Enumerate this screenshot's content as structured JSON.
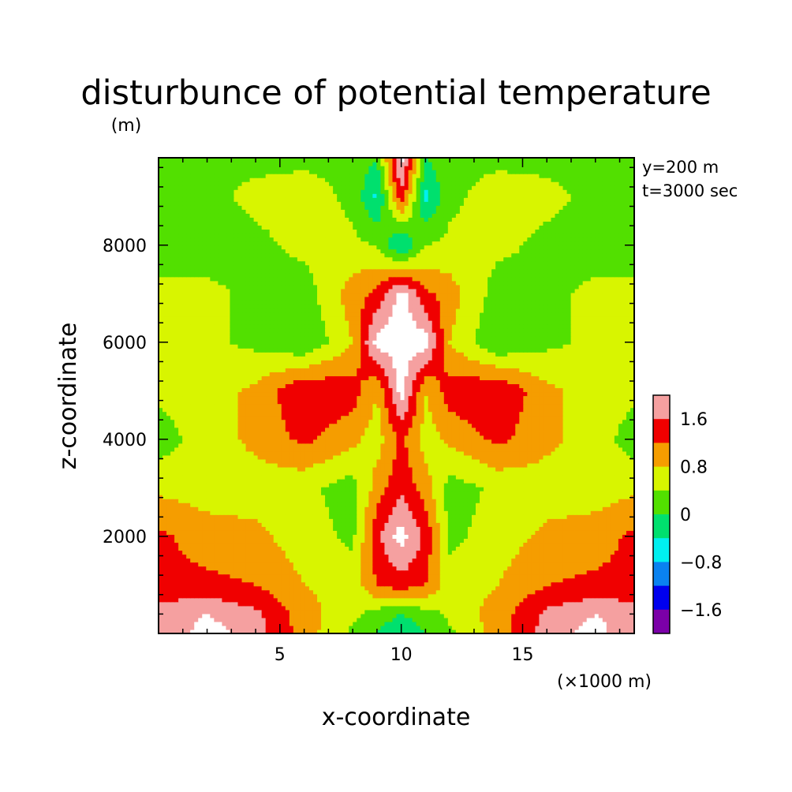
{
  "title": "disturbunce of potential temperature",
  "z_unit": "(m)",
  "info": [
    "y=200 m",
    "t=3000 sec"
  ],
  "x_unit": "(×1000 m)",
  "colorbar": {
    "labels": [
      "1.6",
      "0.8",
      "0",
      "−0.8",
      "−1.6"
    ]
  },
  "chart_data": {
    "type": "heatmap",
    "title": "disturbunce of potential temperature",
    "xlabel": "x-coordinate",
    "ylabel": "z-coordinate",
    "x_unit": "(×1000 m)",
    "y_unit": "(m)",
    "xlim": [
      0,
      19.6
    ],
    "ylim": [
      0,
      9800
    ],
    "x_ticks": [
      5,
      10,
      15
    ],
    "y_ticks": [
      2000,
      4000,
      6000,
      8000
    ],
    "annotations": [
      "y=200 m",
      "t=3000 sec"
    ],
    "levels": [
      {
        "min": null,
        "max": -1.6,
        "color": "#7b00a8"
      },
      {
        "min": -1.6,
        "max": -1.2,
        "color": "#0000ee"
      },
      {
        "min": -1.2,
        "max": -0.8,
        "color": "#0a82f0"
      },
      {
        "min": -0.8,
        "max": -0.4,
        "color": "#00f0f0"
      },
      {
        "min": -0.4,
        "max": 0.0,
        "color": "#00e06e"
      },
      {
        "min": 0.0,
        "max": 0.4,
        "color": "#52e000"
      },
      {
        "min": 0.4,
        "max": 0.8,
        "color": "#d8f500"
      },
      {
        "min": 0.8,
        "max": 1.2,
        "color": "#f59d00"
      },
      {
        "min": 1.2,
        "max": 1.6,
        "color": "#f00000"
      },
      {
        "min": 1.6,
        "max": 2.0,
        "color": "#f5a0a0"
      },
      {
        "min": 2.0,
        "max": null,
        "color": "#ffffff"
      }
    ],
    "colorbar_ticks": [
      1.6,
      0.8,
      0,
      -0.8,
      -1.6
    ],
    "field": {
      "x": [
        0,
        2,
        4,
        6,
        8,
        9,
        10,
        11,
        12,
        14,
        16,
        18,
        19.6
      ],
      "z": [
        0,
        400,
        1000,
        2000,
        3000,
        4000,
        5000,
        6000,
        7000,
        8000,
        9000,
        9800
      ],
      "values": [
        [
          1.6,
          2.2,
          1.8,
          1.0,
          0.3,
          0.0,
          -0.4,
          0.0,
          0.3,
          1.0,
          1.8,
          2.2,
          1.6
        ],
        [
          1.8,
          2.0,
          1.7,
          1.0,
          0.5,
          0.2,
          0.0,
          0.2,
          0.5,
          1.0,
          1.7,
          2.0,
          1.8
        ],
        [
          1.3,
          1.3,
          1.2,
          0.8,
          0.6,
          1.2,
          1.4,
          1.2,
          0.6,
          0.8,
          1.2,
          1.3,
          1.3
        ],
        [
          1.3,
          1.0,
          0.9,
          0.6,
          0.3,
          1.5,
          2.2,
          1.5,
          0.3,
          0.6,
          0.9,
          1.0,
          1.3
        ],
        [
          0.7,
          0.6,
          0.6,
          0.5,
          0.2,
          1.0,
          1.5,
          1.0,
          0.2,
          0.5,
          0.6,
          0.6,
          0.7
        ],
        [
          0.2,
          0.6,
          0.9,
          1.3,
          0.9,
          0.6,
          1.3,
          0.6,
          0.9,
          1.3,
          0.9,
          0.6,
          0.2
        ],
        [
          0.5,
          0.6,
          0.9,
          1.6,
          1.4,
          0.8,
          2.2,
          0.8,
          1.4,
          1.6,
          0.9,
          0.6,
          0.5
        ],
        [
          0.5,
          0.5,
          0.3,
          0.0,
          0.8,
          2.2,
          2.2,
          2.2,
          0.8,
          0.0,
          0.3,
          0.5,
          0.5
        ],
        [
          0.5,
          0.5,
          0.3,
          0.2,
          1.0,
          1.3,
          2.2,
          1.3,
          1.0,
          0.2,
          0.3,
          0.5,
          0.5
        ],
        [
          0.2,
          0.2,
          0.3,
          0.5,
          0.5,
          0.4,
          -0.5,
          0.4,
          0.5,
          0.5,
          0.3,
          0.2,
          0.2
        ],
        [
          0.3,
          0.3,
          0.5,
          0.6,
          0.3,
          -0.5,
          1.5,
          -0.5,
          0.3,
          0.6,
          0.5,
          0.3,
          0.3
        ],
        [
          0.3,
          0.3,
          0.3,
          0.3,
          0.3,
          0.0,
          2.2,
          0.0,
          0.3,
          0.3,
          0.3,
          0.3,
          0.3
        ]
      ]
    }
  }
}
